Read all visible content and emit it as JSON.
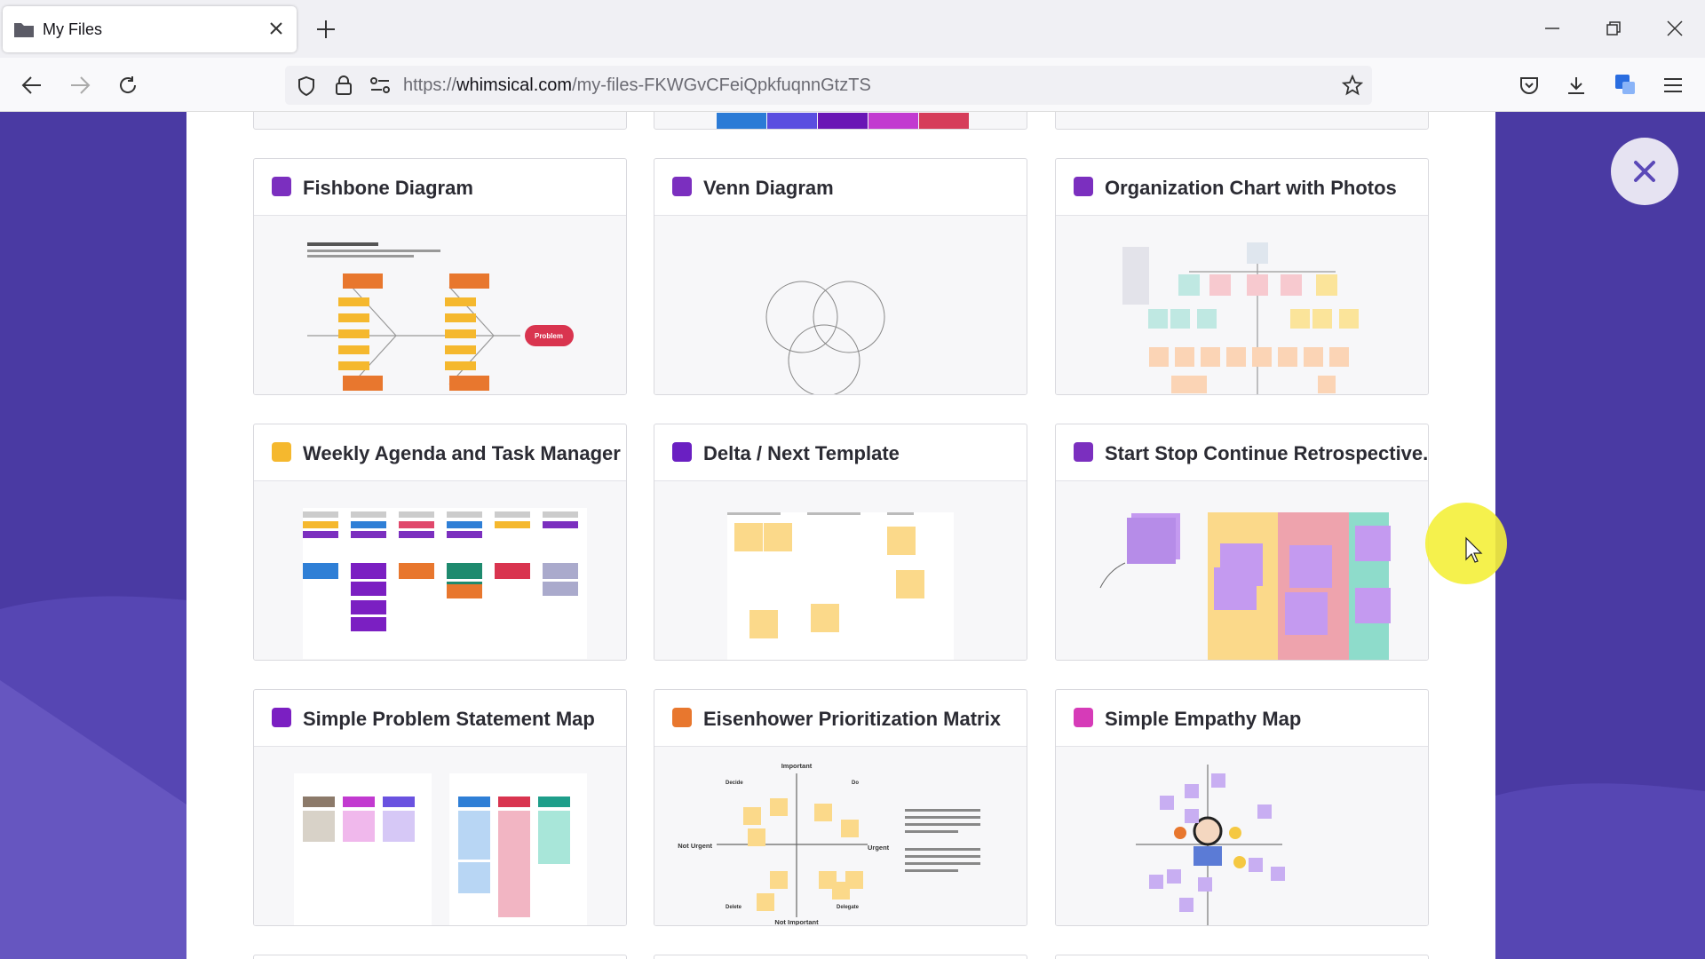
{
  "browser": {
    "tab_title": "My Files",
    "url": {
      "scheme": "https://",
      "domain": "whimsical.com",
      "path": "/my-files-FKWGvCFeiQpkfuqnnGtzTS"
    }
  },
  "cards": [
    {
      "title": "Fishbone Diagram",
      "icon_color": "#7b2fbf",
      "labels": [
        "Problem"
      ]
    },
    {
      "title": "Venn Diagram",
      "icon_color": "#7b2fbf",
      "labels": []
    },
    {
      "title": "Organization Chart with Photos",
      "icon_color": "#7b2fbf",
      "labels": []
    },
    {
      "title": "Weekly Agenda and Task Manager",
      "icon_color": "#f5b82e",
      "labels": []
    },
    {
      "title": "Delta / Next Template",
      "icon_color": "#6a1fc2",
      "labels": []
    },
    {
      "title": "Start Stop Continue Retrospective...",
      "icon_color": "#7b2fbf",
      "labels": []
    },
    {
      "title": "Simple Problem Statement Map",
      "icon_color": "#7b1fc2",
      "labels": []
    },
    {
      "title": "Eisenhower Prioritization Matrix",
      "icon_color": "#e8772e",
      "labels": [
        "Important",
        "Urgent",
        "Not Urgent",
        "Not Important",
        "Decide",
        "Do",
        "Delete",
        "Delegate"
      ]
    },
    {
      "title": "Simple Empathy Map",
      "icon_color": "#d63bb8",
      "labels": []
    }
  ]
}
